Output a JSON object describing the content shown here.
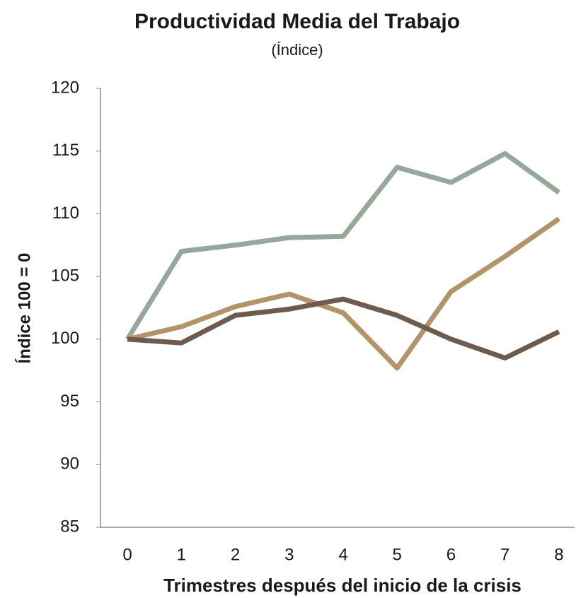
{
  "chart_data": {
    "type": "line",
    "title": "Productividad Media del Trabajo",
    "subtitle": "(Índice)",
    "y_label": "Índice 100 = 0",
    "x_label": "Trimestres después del inicio de la crisis",
    "x": [
      0,
      1,
      2,
      3,
      4,
      5,
      6,
      7,
      8
    ],
    "xlim": [
      -0.5,
      8.5
    ],
    "xticks": [
      0,
      1,
      2,
      3,
      4,
      5,
      6,
      7,
      8
    ],
    "ylim": [
      85,
      120
    ],
    "yticks": [
      85,
      90,
      95,
      100,
      105,
      110,
      115,
      120
    ],
    "grid": false,
    "series": [
      {
        "color": "#95a89a",
        "values": [
          100,
          107.0,
          107.5,
          108.1,
          108.2,
          113.7,
          112.5,
          114.8,
          111.7
        ]
      },
      {
        "color": "#b39368",
        "values": [
          100,
          101.0,
          102.6,
          103.6,
          102.1,
          97.7,
          103.8,
          106.6,
          109.6
        ]
      },
      {
        "color": "#6e5a4e",
        "values": [
          100,
          99.7,
          101.9,
          102.4,
          103.2,
          101.9,
          100.0,
          98.5,
          100.6
        ]
      }
    ]
  }
}
